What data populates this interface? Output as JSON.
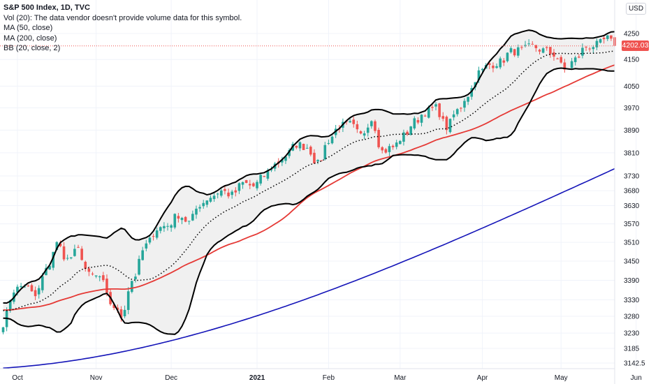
{
  "legend": {
    "title": "S&P 500 Index, 1D, TVC",
    "vol": "Vol (20): The data vendor doesn't provide volume data for this symbol.",
    "ma50": "MA (50, close)",
    "ma200": "MA (200, close)",
    "bb": "BB (20, close, 2)"
  },
  "currency": "USD",
  "last_price_label": "4202.03",
  "colors": {
    "up": "#26a69a",
    "down": "#ef5350",
    "ma50": "#e53935",
    "ma200": "#1414b8",
    "bb_band": "#000000",
    "bb_fill": "#f0f0f0"
  },
  "chart_data": {
    "type": "candlestick",
    "title": "S&P 500 Index, 1D, TVC",
    "xlabel": "",
    "ylabel": "",
    "y_ticks": [
      4250,
      4150,
      4050,
      3970,
      3890,
      3810,
      3730,
      3680,
      3630,
      3570,
      3510,
      3450,
      3390,
      3330,
      3280,
      3230,
      3185,
      3142.5
    ],
    "x_ticks": [
      {
        "label": "Oct",
        "x": "2020-10-01",
        "bold": false
      },
      {
        "label": "Nov",
        "x": "2020-11-02",
        "bold": false
      },
      {
        "label": "Dec",
        "x": "2020-12-01",
        "bold": false
      },
      {
        "label": "2021",
        "x": "2021-01-04",
        "bold": true
      },
      {
        "label": "Feb",
        "x": "2021-02-01",
        "bold": false
      },
      {
        "label": "Mar",
        "x": "2021-03-01",
        "bold": false
      },
      {
        "label": "Apr",
        "x": "2021-04-01",
        "bold": false
      },
      {
        "label": "May",
        "x": "2021-05-03",
        "bold": false
      },
      {
        "label": "Jun",
        "x": "2021-06-01",
        "bold": false
      }
    ],
    "last_price": 4202.03,
    "log_scale": true,
    "grid": true,
    "series": [
      {
        "name": "S&P 500 Index, 1D, TVC",
        "type": "candlestick"
      },
      {
        "name": "MA (50, close)",
        "type": "line"
      },
      {
        "name": "MA (200, close)",
        "type": "line"
      },
      {
        "name": "BB (20, close, 2)",
        "type": "band"
      }
    ],
    "close_path": [
      [
        0,
        3260
      ],
      [
        3,
        3360
      ],
      [
        6,
        3375
      ],
      [
        9,
        3340
      ],
      [
        12,
        3420
      ],
      [
        15,
        3505
      ],
      [
        18,
        3455
      ],
      [
        21,
        3485
      ],
      [
        24,
        3405
      ],
      [
        27,
        3400
      ],
      [
        30,
        3320
      ],
      [
        33,
        3280
      ],
      [
        36,
        3390
      ],
      [
        40,
        3500
      ],
      [
        43,
        3555
      ],
      [
        46,
        3565
      ],
      [
        49,
        3600
      ],
      [
        52,
        3575
      ],
      [
        55,
        3635
      ],
      [
        58,
        3660
      ],
      [
        61,
        3680
      ],
      [
        64,
        3665
      ],
      [
        67,
        3705
      ],
      [
        70,
        3695
      ],
      [
        73,
        3730
      ],
      [
        76,
        3770
      ],
      [
        79,
        3800
      ],
      [
        82,
        3840
      ],
      [
        85,
        3830
      ],
      [
        88,
        3770
      ],
      [
        91,
        3855
      ],
      [
        94,
        3905
      ],
      [
        97,
        3910
      ],
      [
        100,
        3870
      ],
      [
        103,
        3930
      ],
      [
        106,
        3815
      ],
      [
        109,
        3830
      ],
      [
        112,
        3870
      ],
      [
        115,
        3920
      ],
      [
        118,
        3955
      ],
      [
        121,
        3970
      ],
      [
        124,
        3900
      ],
      [
        127,
        3960
      ],
      [
        130,
        4020
      ],
      [
        133,
        4100
      ],
      [
        136,
        4130
      ],
      [
        139,
        4140
      ],
      [
        142,
        4180
      ],
      [
        145,
        4185
      ],
      [
        148,
        4200
      ],
      [
        151,
        4185
      ],
      [
        154,
        4170
      ],
      [
        157,
        4110
      ],
      [
        160,
        4150
      ],
      [
        163,
        4200
      ],
      [
        166,
        4205
      ],
      [
        169,
        4230
      ],
      [
        171,
        4202
      ]
    ]
  }
}
